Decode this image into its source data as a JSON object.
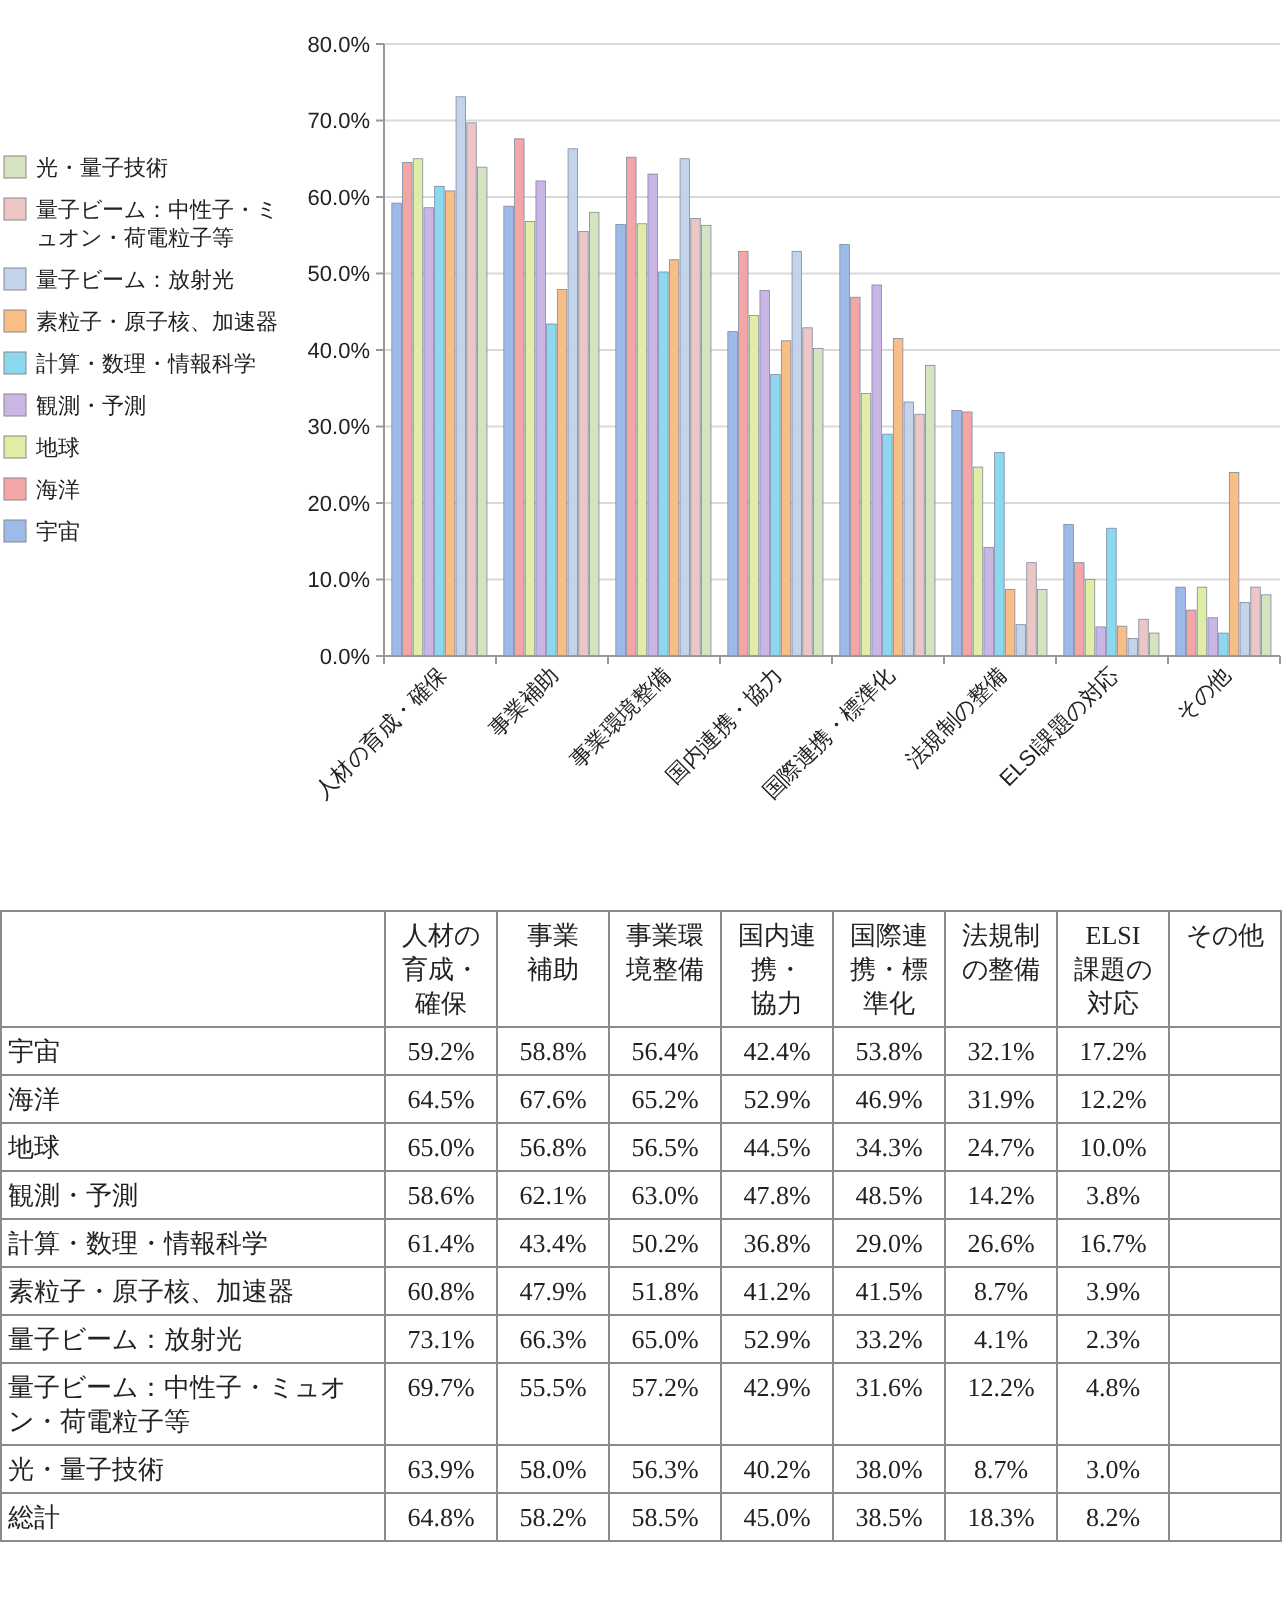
{
  "chart_data": {
    "type": "bar",
    "categories": [
      "人材の育成・確保",
      "事業補助",
      "事業環境整備",
      "国内連携・協力",
      "国際連携・標準化",
      "法規制の整備",
      "ELSI課題の対応",
      "その他"
    ],
    "series": [
      {
        "name": "宇宙",
        "color": "#9dbbe8",
        "values": [
          59.2,
          58.8,
          56.4,
          42.4,
          53.8,
          32.1,
          17.2,
          9
        ],
        "value_labels": [
          "59.2%",
          "58.8%",
          "56.4%",
          "42.4%",
          "53.8%",
          "32.1%",
          "17.2%",
          null
        ]
      },
      {
        "name": "海洋",
        "color": "#f4a6a6",
        "values": [
          64.5,
          67.6,
          65.2,
          52.9,
          46.9,
          31.9,
          12.2,
          6
        ],
        "value_labels": [
          "64.5%",
          "67.6%",
          "65.2%",
          "52.9%",
          "46.9%",
          "31.9%",
          "12.2%",
          null
        ]
      },
      {
        "name": "地球",
        "color": "#dfeea4",
        "values": [
          65.0,
          56.8,
          56.5,
          44.5,
          34.3,
          24.7,
          10.0,
          9
        ],
        "value_labels": [
          "65.0%",
          "56.8%",
          "56.5%",
          "44.5%",
          "34.3%",
          "24.7%",
          "10.0%",
          null
        ]
      },
      {
        "name": "観測・予測",
        "color": "#c9b6e4",
        "values": [
          58.6,
          62.1,
          63.0,
          47.8,
          48.5,
          14.2,
          3.8,
          5
        ],
        "value_labels": [
          "58.6%",
          "62.1%",
          "63.0%",
          "47.8%",
          "48.5%",
          "14.2%",
          "3.8%",
          null
        ]
      },
      {
        "name": "計算・数理・情報科学",
        "color": "#8ad9ee",
        "values": [
          61.4,
          43.4,
          50.2,
          36.8,
          29.0,
          26.6,
          16.7,
          3
        ],
        "value_labels": [
          "61.4%",
          "43.4%",
          "50.2%",
          "36.8%",
          "29.0%",
          "26.6%",
          "16.7%",
          null
        ]
      },
      {
        "name": "素粒子・原子核、加速器",
        "color": "#f8be84",
        "values": [
          60.8,
          47.9,
          51.8,
          41.2,
          41.5,
          8.7,
          3.9,
          24
        ],
        "value_labels": [
          "60.8%",
          "47.9%",
          "51.8%",
          "41.2%",
          "41.5%",
          "8.7%",
          "3.9%",
          null
        ]
      },
      {
        "name": "量子ビーム：放射光",
        "color": "#c3d3ec",
        "values": [
          73.1,
          66.3,
          65.0,
          52.9,
          33.2,
          4.1,
          2.3,
          7
        ],
        "value_labels": [
          "73.1%",
          "66.3%",
          "65.0%",
          "52.9%",
          "33.2%",
          "4.1%",
          "2.3%",
          null
        ]
      },
      {
        "name": "量子ビーム：中性子・ミュオン・荷電粒子等",
        "color": "#eec5c5",
        "values": [
          69.7,
          55.5,
          57.2,
          42.9,
          31.6,
          12.2,
          4.8,
          9
        ],
        "value_labels": [
          "69.7%",
          "55.5%",
          "57.2%",
          "42.9%",
          "31.6%",
          "12.2%",
          "4.8%",
          null
        ]
      },
      {
        "name": "光・量子技術",
        "color": "#d6e3c0",
        "values": [
          63.9,
          58.0,
          56.3,
          40.2,
          38.0,
          8.7,
          3.0,
          8
        ],
        "value_labels": [
          "63.9%",
          "58.0%",
          "56.3%",
          "40.2%",
          "38.0%",
          "8.7%",
          "3.0%",
          null
        ]
      }
    ],
    "annotations": [
      "総計",
      "64.8%",
      "58.2%",
      "58.5%",
      "45.0%",
      "38.5%",
      "18.3%",
      "8.2%"
    ],
    "ylim": [
      0,
      80
    ],
    "yticks": [
      {
        "value": 0,
        "label": "0.0%"
      },
      {
        "value": 10,
        "label": "10.0%"
      },
      {
        "value": 20,
        "label": "20.0%"
      },
      {
        "value": 30,
        "label": "30.0%"
      },
      {
        "value": 40,
        "label": "40.0%"
      },
      {
        "value": 50,
        "label": "50.0%"
      },
      {
        "value": 60,
        "label": "60.0%"
      },
      {
        "value": 70,
        "label": "70.0%"
      },
      {
        "value": 80,
        "label": "80.0%"
      }
    ],
    "grid": "y",
    "legend": "left"
  }
}
